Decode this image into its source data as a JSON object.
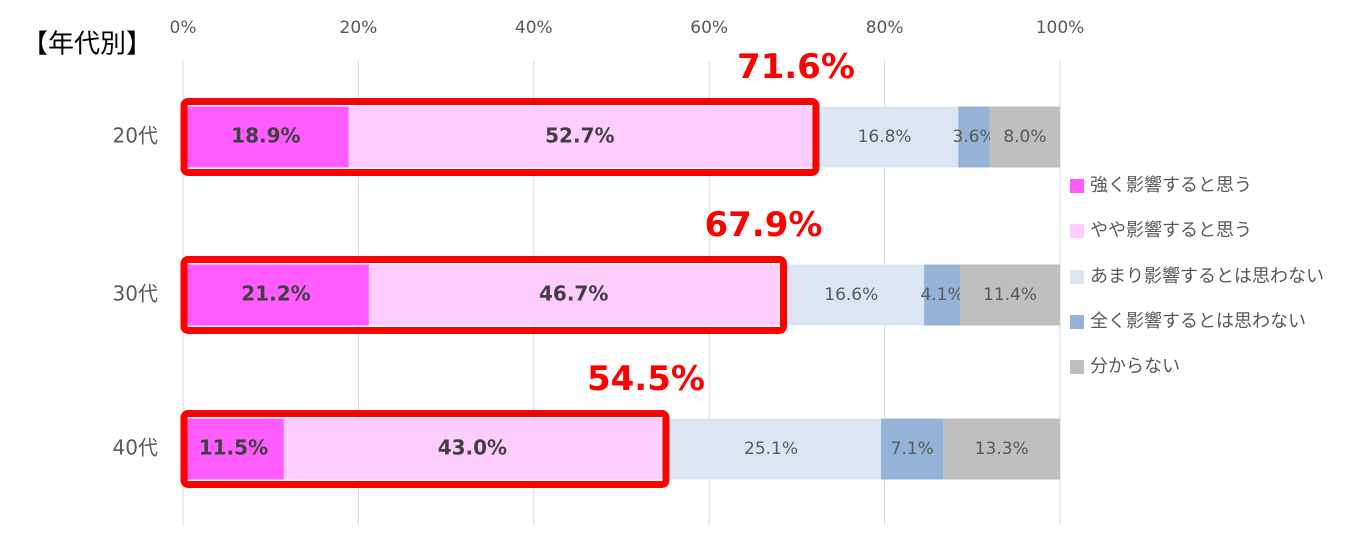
{
  "chart_data": {
    "type": "stacked-bar-horizontal",
    "title": "【年代別】",
    "categories": [
      "20代",
      "30代",
      "40代"
    ],
    "series": [
      {
        "name": "強く影響すると思う",
        "color": "#ff5cff",
        "values": [
          18.9,
          21.2,
          11.5
        ],
        "value_labels": [
          "18.9%",
          "21.2%",
          "11.5%"
        ]
      },
      {
        "name": "やや影響すると思う",
        "color": "#ffccff",
        "values": [
          52.7,
          46.7,
          43.0
        ],
        "value_labels": [
          "52.7%",
          "46.7%",
          "43.0%"
        ]
      },
      {
        "name": "あまり影響するとは思わない",
        "color": "#dce6f2",
        "values": [
          16.8,
          16.6,
          25.1
        ],
        "value_labels": [
          "16.8%",
          "16.6%",
          "25.1%"
        ]
      },
      {
        "name": "全く影響するとは思わない",
        "color": "#95b3d7",
        "values": [
          3.6,
          4.1,
          7.1
        ],
        "value_labels": [
          "3.6%",
          "4.1%",
          "7.1%"
        ]
      },
      {
        "name": "分からない",
        "color": "#bfbfbf",
        "values": [
          8.0,
          11.4,
          13.3
        ],
        "value_labels": [
          "8.0%",
          "11.4%",
          "13.3%"
        ]
      }
    ],
    "annotations": [
      {
        "value": 71.6,
        "label": "71.6%"
      },
      {
        "value": 67.9,
        "label": "67.9%"
      },
      {
        "value": 54.5,
        "label": "54.5%"
      }
    ],
    "annotation_color": "#ff0000",
    "xlim": [
      0,
      100
    ],
    "xticks": [
      {
        "value": 0,
        "label": "0%"
      },
      {
        "value": 20,
        "label": "20%"
      },
      {
        "value": 40,
        "label": "40%"
      },
      {
        "value": 60,
        "label": "60%"
      },
      {
        "value": 80,
        "label": "80%"
      },
      {
        "value": 100,
        "label": "100%"
      }
    ],
    "grid": true
  }
}
